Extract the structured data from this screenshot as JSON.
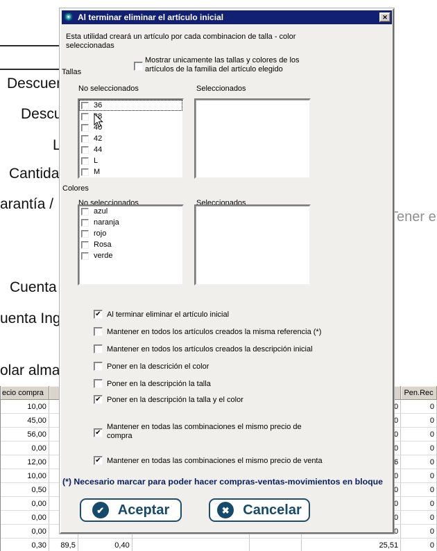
{
  "window": {
    "title": "Al terminar eliminar el artículo inicial"
  },
  "icons": {
    "app": "swirl-app-icon",
    "close": "✕",
    "accept": "✔",
    "cancel": "✖",
    "check": "✔"
  },
  "colors": {
    "titlebar": "#122074",
    "accent": "#164a6b",
    "note_text": "#0b2161"
  },
  "intro": {
    "line1": "Esta utilidad creará un artículo por cada combinacion de talla - color",
    "line2": "seleccionadas"
  },
  "show_only": {
    "label": "Mostrar unicamente las tallas y colores de los artículos de la familia del artículo elegido",
    "checked": false
  },
  "tallas": {
    "group_label": "Tallas",
    "not_selected_label": "No seleccionados",
    "selected_label": "Seleccionados",
    "items": [
      "36",
      "38",
      "40",
      "42",
      "44",
      "L",
      "M"
    ],
    "selected_items": []
  },
  "colores": {
    "group_label": "Colores",
    "not_selected_label": "No seleccionados",
    "selected_label": "Seleccionados",
    "items": [
      "azul",
      "naranja",
      "rojo",
      "Rosa",
      "verde"
    ],
    "selected_items": []
  },
  "options": [
    {
      "label": "Al terminar eliminar el artículo inicial",
      "checked": true
    },
    {
      "label": "Mantener en todos los artículos creados la misma referencia (*)",
      "checked": false
    },
    {
      "label": "Mantener en todos los artículos creados la descripción inicial",
      "checked": false
    },
    {
      "label": "Poner en la descrición el color",
      "checked": false
    },
    {
      "label": "Poner en la descripción la talla",
      "checked": false
    },
    {
      "label": "Poner en la descripción la talla y el color",
      "checked": true
    },
    {
      "label": "Mantener en todas las combinaciones el mismo precio de compra",
      "checked": true
    },
    {
      "label": "Mantener en todas las combinaciones el mismo precio de venta",
      "checked": true
    }
  ],
  "note": "(*) Necesario marcar para poder hacer compras-ventas-movimientos en bloque",
  "buttons": {
    "accept": "Aceptar",
    "cancel": "Cancelar"
  },
  "background": {
    "labels": [
      "Descuer",
      "Descu",
      "L",
      "Cantida",
      "arantía /",
      "Cuenta C",
      "uenta Ing",
      "olar alma"
    ],
    "right_label": "Tener e",
    "table": {
      "headers": [
        "ecio compra",
        "",
        "",
        "",
        "",
        "",
        "Pen.Rec"
      ],
      "rows": [
        [
          "10,00",
          "",
          "",
          "",
          "",
          "0",
          "0"
        ],
        [
          "45,00",
          "",
          "",
          "",
          "",
          "0",
          "0"
        ],
        [
          "56,00",
          "",
          "",
          "",
          "",
          "0",
          "0"
        ],
        [
          "0,00",
          "",
          "",
          "",
          "",
          "0",
          "0"
        ],
        [
          "12,00",
          "",
          "",
          "",
          "",
          "6",
          "0"
        ],
        [
          "10,00",
          "",
          "",
          "",
          "",
          "0",
          "0"
        ],
        [
          "0,50",
          "",
          "",
          "",
          "",
          "0",
          "0"
        ],
        [
          "0,00",
          "",
          "",
          "",
          "",
          "0",
          "0"
        ],
        [
          "0,00",
          "",
          "",
          "",
          "",
          "0",
          "0"
        ],
        [
          "0,00",
          "",
          "",
          "",
          "",
          "0",
          "0"
        ],
        [
          "0,30",
          "89,5",
          "0,40",
          "",
          "",
          "25,51",
          "0"
        ]
      ]
    }
  }
}
